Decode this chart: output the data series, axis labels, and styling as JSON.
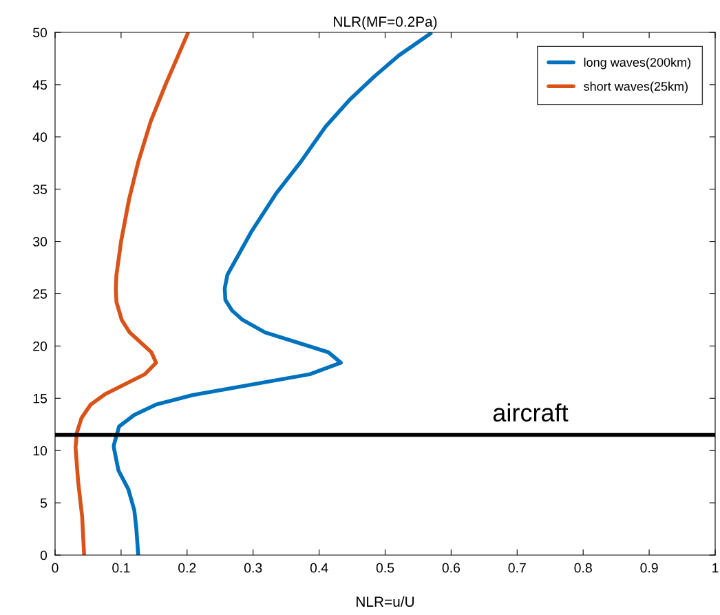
{
  "chart_data": {
    "type": "line",
    "title": "NLR(MF=0.2Pa)",
    "xlabel": "NLR=u/U",
    "xlim": [
      0,
      1
    ],
    "xticks": [
      0,
      0.1,
      0.2,
      0.3,
      0.4,
      0.5,
      0.6,
      0.7,
      0.8,
      0.9,
      1
    ],
    "ylim": [
      0,
      50
    ],
    "yticks": [
      0,
      5,
      10,
      15,
      20,
      25,
      30,
      35,
      40,
      45,
      50
    ],
    "legend": "top right",
    "grid": false,
    "marker": "none",
    "line_style": "solid",
    "series": [
      {
        "name": "long waves(200km)",
        "color": "#0072bd",
        "x": [
          0.126,
          0.123,
          0.12,
          0.111,
          0.096,
          0.089,
          0.089,
          0.097,
          0.12,
          0.153,
          0.208,
          0.386,
          0.433,
          0.414,
          0.318,
          0.284,
          0.268,
          0.258,
          0.257,
          0.261,
          0.298,
          0.335,
          0.372,
          0.41,
          0.447,
          0.484,
          0.521,
          0.569
        ],
        "values": [
          0,
          2.6,
          4.3,
          6.3,
          8.1,
          10.3,
          10.5,
          12.3,
          13.4,
          14.4,
          15.3,
          17.3,
          18.4,
          19.4,
          21.3,
          22.5,
          23.4,
          24.4,
          25.5,
          26.8,
          31.0,
          34.6,
          37.6,
          41.0,
          43.6,
          45.8,
          47.8,
          49.9
        ]
      },
      {
        "name": "short waves(25km)",
        "color": "#d95319",
        "x": [
          0.044,
          0.041,
          0.035,
          0.031,
          0.033,
          0.04,
          0.054,
          0.076,
          0.136,
          0.153,
          0.146,
          0.113,
          0.101,
          0.093,
          0.092,
          0.093,
          0.1,
          0.112,
          0.126,
          0.145,
          0.168,
          0.201
        ],
        "values": [
          0,
          3.7,
          7.0,
          10.3,
          11.7,
          13.1,
          14.4,
          15.4,
          17.3,
          18.4,
          19.4,
          21.3,
          22.5,
          24.2,
          25.5,
          26.8,
          30.0,
          34.0,
          37.6,
          41.5,
          45.1,
          49.9
        ]
      }
    ],
    "ref_lines": [
      {
        "axis": "y",
        "value": 11.5,
        "label": "aircraft",
        "color": "#000000",
        "line_style": "solid"
      }
    ]
  }
}
